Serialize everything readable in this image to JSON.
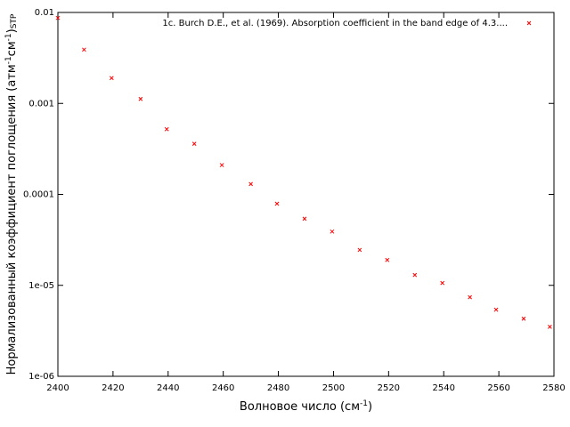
{
  "chart_data": {
    "type": "scatter",
    "x_label": [
      {
        "text": "Волновое число (см"
      },
      {
        "text": "-1",
        "shift": "super"
      },
      {
        "text": ")"
      }
    ],
    "y_label": [
      {
        "text": "Нормализованный коэффициент поглощения (атм"
      },
      {
        "text": "-1",
        "shift": "super"
      },
      {
        "text": "см"
      },
      {
        "text": "-1",
        "shift": "super"
      },
      {
        "text": ")"
      },
      {
        "text": "STP",
        "shift": "sub"
      }
    ],
    "log_y": true,
    "xlim": [
      2400,
      2580
    ],
    "xticks": [
      2400,
      2420,
      2440,
      2460,
      2480,
      2500,
      2520,
      2540,
      2560,
      2580
    ],
    "ylim": [
      1e-06,
      0.01
    ],
    "yticks": [
      0.01,
      0.001,
      0.0001,
      {
        "value": 1e-05,
        "label": "1e-05"
      },
      {
        "value": 1e-06,
        "label": "1e-06"
      }
    ],
    "legend_position": "top-right",
    "series": [
      {
        "name": "1c. Burch D.E., et al. (1969). Absorption coefficient in the band edge of 4.3....",
        "color": "#ff0000",
        "x": [
          2400,
          2409.5,
          2419.5,
          2430,
          2439.5,
          2449.5,
          2459.5,
          2470,
          2479.5,
          2489.5,
          2499.5,
          2509.5,
          2519.5,
          2529.5,
          2539.5,
          2549.5,
          2559,
          2569,
          2578.5
        ],
        "values": [
          0.0087,
          0.0039,
          0.0019,
          0.00112,
          0.00052,
          0.00036,
          0.00021,
          0.00013,
          7.9e-05,
          5.4e-05,
          3.9e-05,
          2.45e-05,
          1.9e-05,
          1.3e-05,
          1.06e-05,
          7.4e-06,
          5.4e-06,
          4.3e-06,
          3.5e-06
        ]
      }
    ]
  }
}
